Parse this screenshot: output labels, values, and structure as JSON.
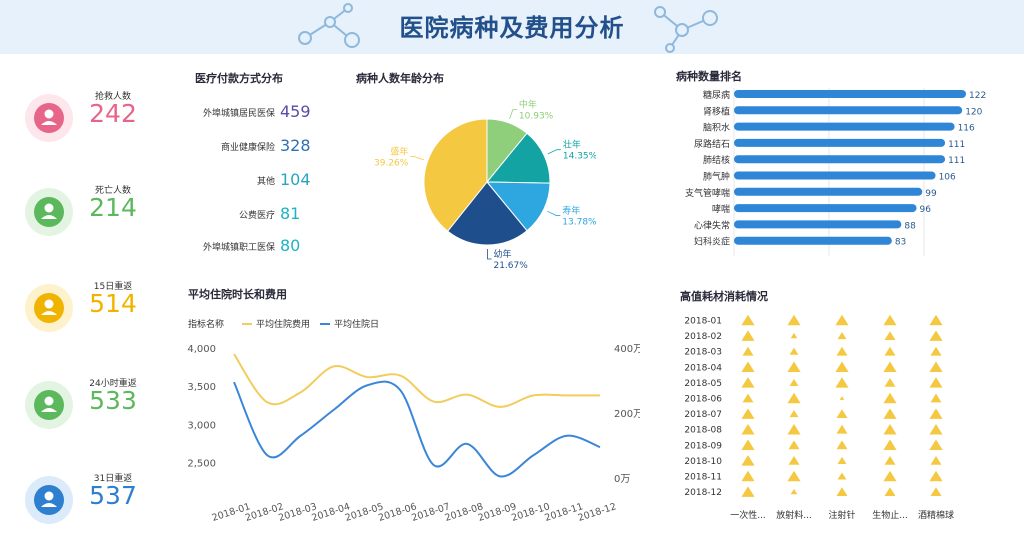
{
  "header": {
    "title": "医院病种及费用分析"
  },
  "kpis": [
    {
      "label": "抢救人数",
      "value": "242",
      "color": "#e8658a",
      "bg": "#fde6ec",
      "icon": "group-icon"
    },
    {
      "label": "死亡人数",
      "value": "214",
      "color": "#5cb85c",
      "bg": "#e3f4e3",
      "icon": "person-icon"
    },
    {
      "label": "15日重返",
      "value": "514",
      "color": "#f0b400",
      "bg": "#fdf2cc",
      "icon": "clipboard-icon"
    },
    {
      "label": "24小时重返",
      "value": "533",
      "color": "#5cb85c",
      "bg": "#e3f4e3",
      "icon": "doctor-icon"
    },
    {
      "label": "31日重返",
      "value": "537",
      "color": "#2f7fd0",
      "bg": "#dcebfa",
      "icon": "money-bag-icon"
    }
  ],
  "payment": {
    "title": "医疗付款方式分布",
    "items": [
      {
        "label": "外埠城镇居民医保",
        "value": "459",
        "color": "#5b4aa8"
      },
      {
        "label": "商业健康保险",
        "value": "328",
        "color": "#2f6fb5"
      },
      {
        "label": "其他",
        "value": "104",
        "color": "#2aa3c6"
      },
      {
        "label": "公费医疗",
        "value": "81",
        "color": "#1fb3c8"
      },
      {
        "label": "外埠城镇职工医保",
        "value": "80",
        "color": "#1fb3c8"
      }
    ]
  },
  "pie": {
    "title": "病种人数年龄分布",
    "chart_data": {
      "type": "pie",
      "slices": [
        {
          "name": "中年",
          "value": 10.93,
          "pct": "10.93%",
          "color": "#8fce7a"
        },
        {
          "name": "壮年",
          "value": 14.35,
          "pct": "14.35%",
          "color": "#13a3a3"
        },
        {
          "name": "寿年",
          "value": 13.78,
          "pct": "13.78%",
          "color": "#2ea7e0"
        },
        {
          "name": "幼年",
          "value": 21.67,
          "pct": "21.67%",
          "color": "#1f4e8c"
        },
        {
          "name": "盛年",
          "value": 39.26,
          "pct": "39.26%",
          "color": "#f5c842"
        }
      ]
    }
  },
  "ranking": {
    "title": "病种数量排名",
    "chart_data": {
      "type": "bar",
      "orientation": "horizontal",
      "categories": [
        "糖尿病",
        "肾移植",
        "脑积水",
        "尿路结石",
        "肺结核",
        "肺气肿",
        "支气管哮喘",
        "哮喘",
        "心律失常",
        "妇科炎症"
      ],
      "values": [
        122,
        120,
        116,
        111,
        111,
        106,
        99,
        96,
        88,
        83
      ],
      "xlim": [
        0,
        122
      ],
      "color": "#2f86d6"
    }
  },
  "stay": {
    "title": "平均住院时长和费用",
    "legend_title": "指标名称",
    "chart_data": {
      "type": "line",
      "categories": [
        "2018-01",
        "2018-02",
        "2018-03",
        "2018-04",
        "2018-05",
        "2018-06",
        "2018-07",
        "2018-08",
        "2018-09",
        "2018-10",
        "2018-11",
        "2018-12"
      ],
      "series": [
        {
          "name": "平均住院费用",
          "axis": "left",
          "color": "#f2cc5c",
          "values": [
            3920,
            3290,
            3420,
            3760,
            3620,
            3640,
            3300,
            3390,
            3230,
            3380,
            3380,
            3380
          ]
        },
        {
          "name": "平均住院日",
          "axis": "right",
          "color": "#3a86d8",
          "values": [
            2950000,
            700000,
            1300000,
            2100000,
            2850000,
            2700000,
            400000,
            1050000,
            50000,
            700000,
            1300000,
            950000
          ]
        }
      ],
      "ylim_left": [
        2300,
        4000
      ],
      "yticks_left": [
        "4,000",
        "3,500",
        "3,000",
        "2,500"
      ],
      "yticks_left_values": [
        4000,
        3500,
        3000,
        2500
      ],
      "ylim_right": [
        0,
        4000000
      ],
      "yticks_right": [
        "400万",
        "200万",
        "0万"
      ],
      "yticks_right_values": [
        4000000,
        2000000,
        0
      ],
      "grid": false
    }
  },
  "materials": {
    "title": "高值耗材消耗情况",
    "chart_data": {
      "type": "scatter",
      "rows": [
        "2018-01",
        "2018-02",
        "2018-03",
        "2018-04",
        "2018-05",
        "2018-06",
        "2018-07",
        "2018-08",
        "2018-09",
        "2018-10",
        "2018-11",
        "2018-12"
      ],
      "columns": [
        "一次性...",
        "放射料...",
        "注射针",
        "生物止...",
        "酒精棉球"
      ],
      "sizes": [
        [
          5,
          5,
          5,
          5,
          5
        ],
        [
          5,
          2,
          3,
          4,
          5
        ],
        [
          4,
          3,
          4,
          4,
          4
        ],
        [
          5,
          5,
          5,
          5,
          5
        ],
        [
          5,
          3,
          5,
          4,
          5
        ],
        [
          4,
          5,
          1,
          5,
          4
        ],
        [
          5,
          3,
          4,
          5,
          5
        ],
        [
          5,
          5,
          4,
          5,
          5
        ],
        [
          5,
          4,
          4,
          5,
          5
        ],
        [
          5,
          4,
          3,
          4,
          4
        ],
        [
          5,
          5,
          3,
          5,
          5
        ],
        [
          5,
          2,
          4,
          4,
          4
        ]
      ],
      "color": "#f5c842"
    }
  }
}
